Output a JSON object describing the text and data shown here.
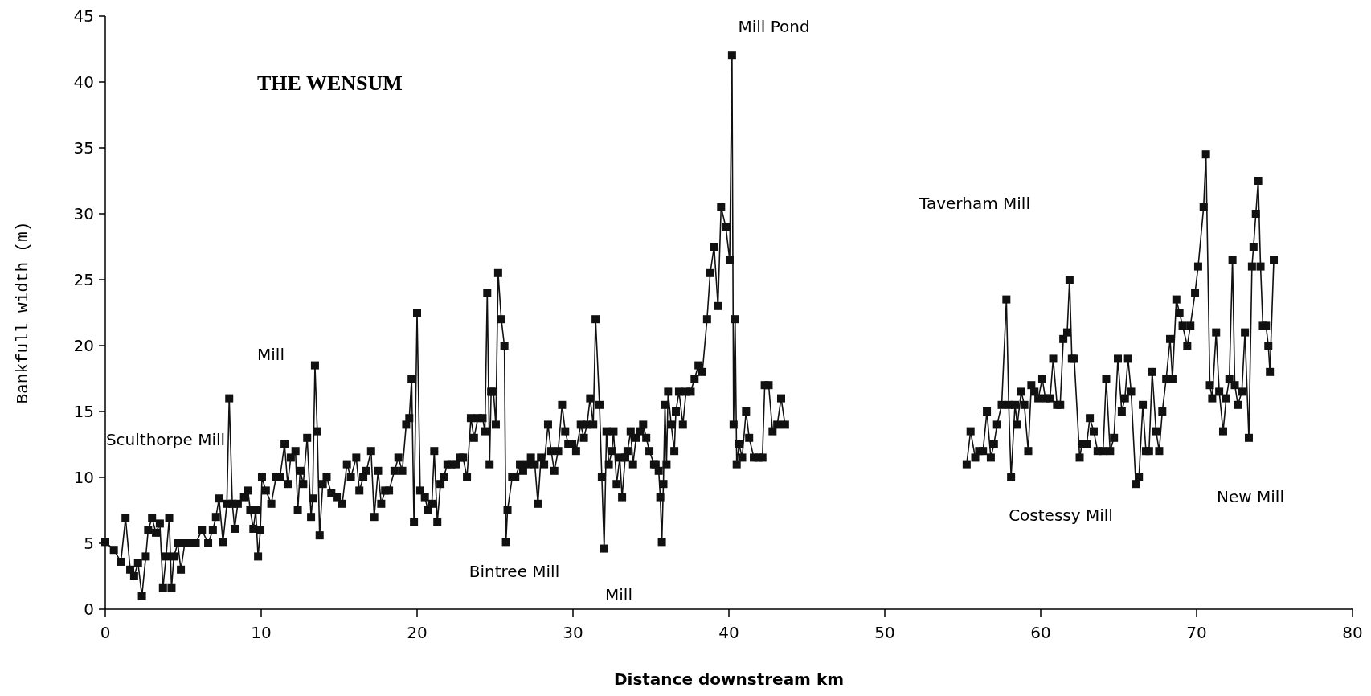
{
  "chart_data": {
    "type": "line",
    "title": "THE WENSUM",
    "xlabel": "Distance downstream km",
    "ylabel": "Bankfull width (m)",
    "x": [
      0,
      0.55,
      1.0,
      1.3,
      1.6,
      1.85,
      2.1,
      2.35,
      2.6,
      2.75,
      3.0,
      3.25,
      3.5,
      3.7,
      3.9,
      4.1,
      4.25,
      4.4,
      4.65,
      4.85,
      5.1,
      5.5,
      5.8,
      6.2,
      6.6,
      6.9,
      7.1,
      7.3,
      7.55,
      7.8,
      7.95,
      8.15,
      8.3,
      8.5,
      8.9,
      9.15,
      9.3,
      9.5,
      9.65,
      9.8,
      9.95,
      10.05,
      10.3,
      10.65,
      10.95,
      11.2,
      11.5,
      11.7,
      11.9,
      12.2,
      12.35,
      12.5,
      12.7,
      12.95,
      13.2,
      13.3,
      13.45,
      13.6,
      13.75,
      13.95,
      14.2,
      14.5,
      14.85,
      15.2,
      15.5,
      15.75,
      16.1,
      16.3,
      16.55,
      16.75,
      17.05,
      17.25,
      17.5,
      17.7,
      17.95,
      18.2,
      18.55,
      18.8,
      19.05,
      19.3,
      19.5,
      19.65,
      19.8,
      20.0,
      20.2,
      20.5,
      20.7,
      20.95,
      21.1,
      21.3,
      21.5,
      21.7,
      21.95,
      22.2,
      22.5,
      22.75,
      22.95,
      23.2,
      23.45,
      23.65,
      23.9,
      24.2,
      24.35,
      24.5,
      24.65,
      24.75,
      24.9,
      25.05,
      25.2,
      25.4,
      25.6,
      25.7,
      25.8,
      26.1,
      26.3,
      26.6,
      26.8,
      27.1,
      27.3,
      27.55,
      27.75,
      27.95,
      28.15,
      28.4,
      28.6,
      28.8,
      29.05,
      29.3,
      29.5,
      29.7,
      29.95,
      30.2,
      30.5,
      30.7,
      30.9,
      31.1,
      31.3,
      31.45,
      31.7,
      31.85,
      32.0,
      32.15,
      32.3,
      32.5,
      32.6,
      32.8,
      33.0,
      33.15,
      33.35,
      33.5,
      33.7,
      33.85,
      34.05,
      34.3,
      34.5,
      34.7,
      34.9,
      35.2,
      35.3,
      35.5,
      35.6,
      35.7,
      35.8,
      35.9,
      36.0,
      36.1,
      36.3,
      36.5,
      36.6,
      36.8,
      37.05,
      37.25,
      37.55,
      37.8,
      38.05,
      38.3,
      38.6,
      38.8,
      39.05,
      39.3,
      39.5,
      39.8,
      40.05,
      40.2,
      40.3,
      40.4,
      40.5,
      40.65,
      40.85,
      41.1,
      41.3,
      41.6,
      41.9,
      42.15,
      42.3,
      42.55,
      42.8,
      43.1,
      43.35,
      43.6,
      49.4,
      55.25,
      55.5,
      55.8,
      56.05,
      56.3,
      56.55,
      56.8,
      57.0,
      57.2,
      57.5,
      57.8,
      57.95,
      58.1,
      58.35,
      58.5,
      58.75,
      58.95,
      59.2,
      59.4,
      59.6,
      59.85,
      60.1,
      60.3,
      60.6,
      60.8,
      61.05,
      61.25,
      61.45,
      61.7,
      61.85,
      62.0,
      62.15,
      62.5,
      62.65,
      62.95,
      63.15,
      63.4,
      63.65,
      64.0,
      64.2,
      64.45,
      64.7,
      64.95,
      65.2,
      65.4,
      65.6,
      65.8,
      66.1,
      66.3,
      66.55,
      66.75,
      66.95,
      67.15,
      67.4,
      67.6,
      67.8,
      68.05,
      68.3,
      68.45,
      68.7,
      68.9,
      69.1,
      69.4,
      69.6,
      69.9,
      70.1,
      70.45,
      70.6,
      70.85,
      71.0,
      71.25,
      71.45,
      71.7,
      71.9,
      72.1,
      72.3,
      72.45,
      72.65,
      72.9,
      73.1,
      73.35,
      73.55,
      73.65,
      73.8,
      73.95,
      74.1,
      74.25,
      74.45,
      74.6,
      74.7,
      74.95
    ],
    "series": [
      {
        "color": "#111111",
        "values": [
          5.1,
          4.5,
          3.6,
          6.9,
          3.0,
          2.5,
          3.5,
          1.0,
          4.0,
          6.0,
          6.9,
          5.8,
          6.5,
          1.6,
          4.0,
          6.9,
          1.6,
          4.0,
          5.0,
          3.0,
          5.0,
          5.0,
          5.0,
          6.0,
          5.0,
          6.0,
          7.0,
          8.4,
          5.1,
          8.0,
          16.0,
          8.0,
          6.1,
          8.0,
          8.5,
          9.0,
          7.5,
          6.1,
          7.5,
          4.0,
          6.0,
          10.0,
          9.0,
          8.0,
          10.0,
          10.0,
          12.5,
          9.5,
          11.5,
          12.0,
          7.5,
          10.5,
          9.5,
          13.0,
          7.0,
          8.4,
          18.5,
          13.5,
          5.6,
          9.5,
          10.0,
          8.8,
          8.5,
          8.0,
          11.0,
          10.0,
          11.5,
          9.0,
          10.0,
          10.5,
          12.0,
          7.0,
          10.5,
          8.0,
          9.0,
          9.0,
          10.5,
          11.5,
          10.5,
          14.0,
          14.5,
          17.5,
          6.6,
          22.5,
          9.0,
          8.5,
          7.5,
          8.0,
          12.0,
          6.6,
          9.5,
          10.0,
          11.0,
          11.0,
          11.0,
          11.5,
          11.5,
          10.0,
          14.5,
          13.0,
          14.5,
          14.5,
          13.5,
          24.0,
          11.0,
          16.5,
          16.5,
          14.0,
          25.5,
          22.0,
          20.0,
          5.1,
          7.5,
          10.0,
          10.0,
          11.0,
          10.5,
          11.0,
          11.5,
          11.0,
          8.0,
          11.5,
          11.0,
          14.0,
          12.0,
          10.5,
          12.0,
          15.5,
          13.5,
          12.5,
          12.5,
          12.0,
          14.0,
          13.0,
          14.0,
          16.0,
          14.0,
          22.0,
          15.5,
          10.0,
          4.6,
          13.5,
          11.0,
          12.0,
          13.5,
          9.5,
          11.5,
          8.5,
          11.5,
          12.0,
          13.5,
          11.0,
          13.0,
          13.5,
          14.0,
          13.0,
          12.0,
          11.0,
          11.0,
          10.5,
          8.5,
          5.1,
          9.5,
          15.5,
          11.0,
          16.5,
          14.0,
          12.0,
          15.0,
          16.5,
          14.0,
          16.5,
          16.5,
          17.5,
          18.5,
          18.0,
          22.0,
          25.5,
          27.5,
          23.0,
          30.5,
          29.0,
          26.5,
          42.0,
          14.0,
          22.0,
          11.0,
          12.5,
          11.5,
          15.0,
          13.0,
          11.5,
          11.5,
          11.5,
          17.0,
          17.0,
          13.5,
          14.0,
          16.0,
          14.0,
          null,
          11.0,
          13.5,
          11.5,
          12.0,
          12.0,
          15.0,
          11.5,
          12.5,
          14.0,
          15.5,
          23.5,
          15.5,
          10.0,
          15.5,
          14.0,
          16.5,
          15.5,
          12.0,
          17.0,
          16.5,
          16.0,
          17.5,
          16.0,
          16.0,
          19.0,
          15.5,
          15.5,
          20.5,
          21.0,
          25.0,
          19.0,
          19.0,
          11.5,
          12.5,
          12.5,
          14.5,
          13.5,
          12.0,
          12.0,
          17.5,
          12.0,
          13.0,
          19.0,
          15.0,
          16.0,
          19.0,
          16.5,
          9.5,
          10.0,
          15.5,
          12.0,
          12.0,
          18.0,
          13.5,
          12.0,
          15.0,
          17.5,
          20.5,
          17.5,
          23.5,
          22.5,
          21.5,
          20.0,
          21.5,
          24.0,
          26.0,
          30.5,
          34.5,
          17.0,
          16.0,
          21.0,
          16.5,
          13.5,
          16.0,
          17.5,
          26.5,
          17.0,
          15.5,
          16.5,
          21.0,
          13.0,
          26.0,
          27.5,
          30.0,
          32.5,
          26.0,
          21.5,
          21.5,
          20.0,
          18.0,
          26.5
        ]
      }
    ],
    "xlim": [
      0,
      80
    ],
    "xticks": [
      0,
      10,
      20,
      30,
      40,
      50,
      60,
      70,
      80
    ],
    "ylim": [
      0,
      45
    ],
    "yticks": [
      0,
      5,
      10,
      15,
      20,
      25,
      30,
      35,
      40,
      45
    ],
    "grid": false,
    "marker": "square",
    "line_style": "solid",
    "annotations": [
      "Mill Pond",
      "Taverham Mill",
      "Mill",
      "Sculthorpe Mill",
      "Bintree Mill",
      "Mill",
      "Costessy Mill",
      "New Mill"
    ]
  }
}
